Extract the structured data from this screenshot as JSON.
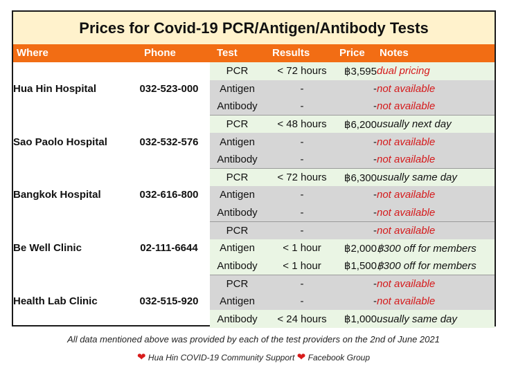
{
  "title": "Prices for Covid-19 PCR/Antigen/Antibody Tests",
  "columns": {
    "where": "Where",
    "phone": "Phone",
    "test": "Test",
    "results": "Results",
    "price": "Price",
    "notes": "Notes"
  },
  "providers": [
    {
      "name": "Hua Hin Hospital",
      "phone": "032-523-000",
      "rows": [
        {
          "test": "PCR",
          "results": "< 72 hours",
          "price": "฿3,595",
          "notes": "dual pricing",
          "available": true,
          "notes_red": true
        },
        {
          "test": "Antigen",
          "results": "-",
          "price": "-",
          "notes": "not available",
          "available": false,
          "notes_red": true
        },
        {
          "test": "Antibody",
          "results": "-",
          "price": "-",
          "notes": "not available",
          "available": false,
          "notes_red": true
        }
      ]
    },
    {
      "name": "Sao Paolo Hospital",
      "phone": "032-532-576",
      "rows": [
        {
          "test": "PCR",
          "results": "< 48 hours",
          "price": "฿6,200",
          "notes": "usually next day",
          "available": true,
          "notes_red": false
        },
        {
          "test": "Antigen",
          "results": "-",
          "price": "-",
          "notes": "not available",
          "available": false,
          "notes_red": true
        },
        {
          "test": "Antibody",
          "results": "-",
          "price": "-",
          "notes": "not available",
          "available": false,
          "notes_red": true
        }
      ]
    },
    {
      "name": "Bangkok Hospital",
      "phone": "032-616-800",
      "rows": [
        {
          "test": "PCR",
          "results": "< 72 hours",
          "price": "฿6,300",
          "notes": "usually same day",
          "available": true,
          "notes_red": false
        },
        {
          "test": "Antigen",
          "results": "-",
          "price": "-",
          "notes": "not available",
          "available": false,
          "notes_red": true
        },
        {
          "test": "Antibody",
          "results": "-",
          "price": "-",
          "notes": "not available",
          "available": false,
          "notes_red": true
        }
      ]
    },
    {
      "name": "Be Well Clinic",
      "phone": "02-111-6644",
      "rows": [
        {
          "test": "PCR",
          "results": "-",
          "price": "-",
          "notes": "not available",
          "available": false,
          "notes_red": true
        },
        {
          "test": "Antigen",
          "results": "< 1 hour",
          "price": "฿2,000",
          "notes": "฿300 off for members",
          "available": true,
          "notes_red": false
        },
        {
          "test": "Antibody",
          "results": "< 1 hour",
          "price": "฿1,500",
          "notes": "฿300 off for members",
          "available": true,
          "notes_red": false
        }
      ]
    },
    {
      "name": "Health Lab Clinic",
      "phone": "032-515-920",
      "rows": [
        {
          "test": "PCR",
          "results": "-",
          "price": "-",
          "notes": "not available",
          "available": false,
          "notes_red": true
        },
        {
          "test": "Antigen",
          "results": "-",
          "price": "-",
          "notes": "not available",
          "available": false,
          "notes_red": true
        },
        {
          "test": "Antibody",
          "results": "< 24 hours",
          "price": "฿1,000",
          "notes": "usually same day",
          "available": true,
          "notes_red": false
        }
      ]
    }
  ],
  "footer": {
    "disclaimer": "All data mentioned above was provided by each of the test providers on the 2nd of June 2021",
    "group_name": "Hua Hin COVID-19 Community Support",
    "group_suffix": "Facebook Group",
    "heart_icon": "❤"
  },
  "colors": {
    "title_bg": "#fff2cc",
    "header_bg": "#f26d14",
    "unavailable_bg": "#d6d6d6",
    "available_bg": "#eaf5e4",
    "price_text": "#1a35b0",
    "not_available_text": "#d5191b"
  }
}
